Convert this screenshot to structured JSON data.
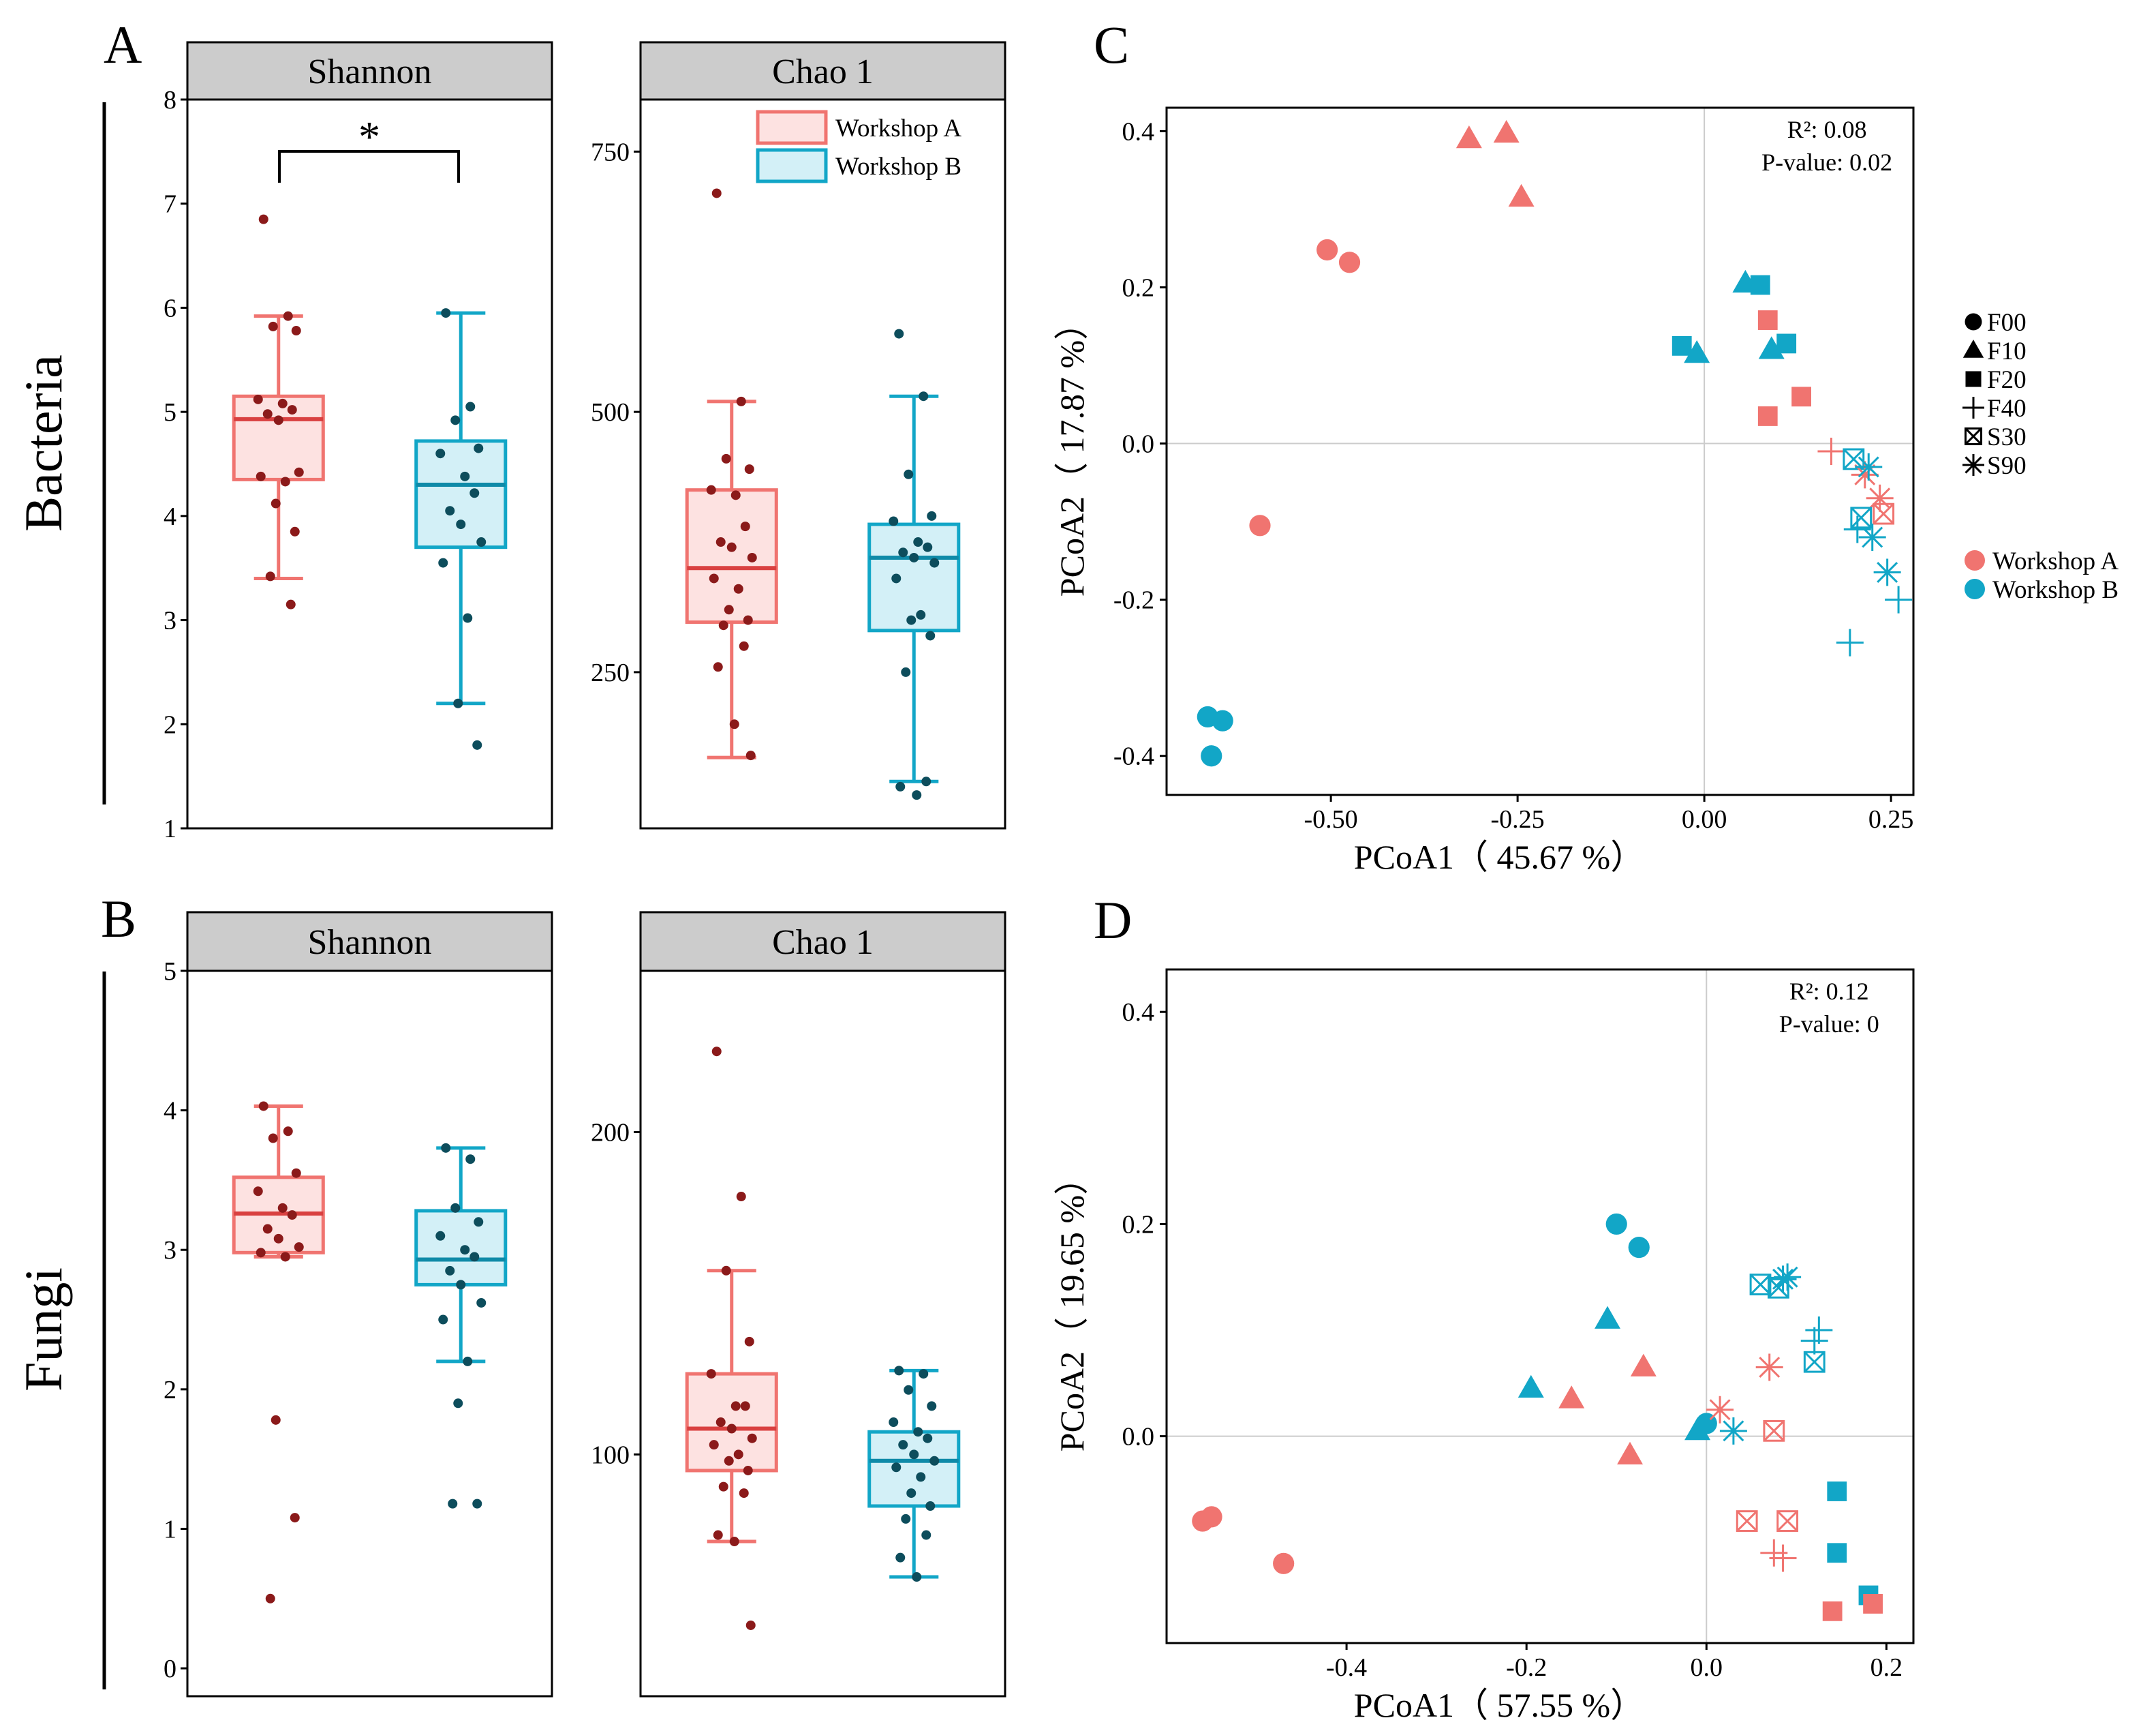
{
  "colors": {
    "workshopA": "#f07470",
    "workshopB": "#12a6c7",
    "workshopA_fill": "#fde2e1",
    "workshopB_fill": "#d3f0f7",
    "workshopA_point": "#8b1a1a",
    "workshopB_point": "#0d4d5c",
    "strip_fill": "#cccccc",
    "zero_line": "#cccccc"
  },
  "rows": [
    {
      "label": "Bacteria"
    },
    {
      "label": "Fungi"
    }
  ],
  "significance": {
    "label": "*"
  },
  "chart_data": [
    {
      "id": "A-shannon",
      "panel": "A",
      "type": "box",
      "title": "Shannon",
      "ylim": [
        1,
        8
      ],
      "yticks": [
        1,
        2,
        3,
        4,
        5,
        6,
        7,
        8
      ],
      "groups": [
        {
          "name": "Workshop A",
          "box": {
            "min": 3.4,
            "q1": 4.35,
            "median": 4.93,
            "q3": 5.15,
            "max": 5.92
          },
          "points": [
            6.85,
            5.92,
            5.82,
            5.78,
            5.12,
            5.08,
            5.02,
            4.98,
            4.92,
            4.42,
            4.38,
            4.33,
            4.12,
            3.85,
            3.42,
            3.15
          ]
        },
        {
          "name": "Workshop B",
          "box": {
            "min": 2.2,
            "q1": 3.7,
            "median": 4.3,
            "q3": 4.72,
            "max": 5.95
          },
          "points": [
            5.95,
            5.05,
            4.92,
            4.65,
            4.6,
            4.38,
            4.22,
            4.05,
            3.92,
            3.75,
            3.55,
            3.02,
            2.2,
            1.8
          ]
        }
      ]
    },
    {
      "id": "A-chao",
      "panel": "A",
      "type": "box",
      "title": "Chao 1",
      "ylim": [
        100,
        800
      ],
      "yticks": [
        250,
        500,
        750
      ],
      "groups": [
        {
          "name": "Workshop A",
          "box": {
            "min": 168,
            "q1": 298,
            "median": 350,
            "q3": 425,
            "max": 510
          },
          "points": [
            710,
            510,
            455,
            445,
            425,
            420,
            390,
            375,
            370,
            360,
            340,
            330,
            310,
            300,
            295,
            275,
            255,
            200,
            170
          ]
        },
        {
          "name": "Workshop B",
          "box": {
            "min": 145,
            "q1": 290,
            "median": 360,
            "q3": 392,
            "max": 515
          },
          "points": [
            575,
            515,
            440,
            400,
            395,
            375,
            370,
            365,
            360,
            355,
            340,
            305,
            300,
            285,
            250,
            145,
            140,
            132
          ]
        }
      ]
    },
    {
      "id": "B-shannon",
      "panel": "B",
      "type": "box",
      "title": "Shannon",
      "ylim": [
        -0.2,
        5
      ],
      "yticks": [
        0,
        1,
        2,
        3,
        4,
        5
      ],
      "groups": [
        {
          "name": "Workshop A",
          "box": {
            "min": 2.95,
            "q1": 2.98,
            "median": 3.26,
            "q3": 3.52,
            "max": 4.03
          },
          "points": [
            4.03,
            3.85,
            3.8,
            3.55,
            3.42,
            3.3,
            3.25,
            3.15,
            3.08,
            3.02,
            2.98,
            2.95,
            1.78,
            1.08,
            0.5
          ]
        },
        {
          "name": "Workshop B",
          "box": {
            "min": 2.2,
            "q1": 2.75,
            "median": 2.93,
            "q3": 3.28,
            "max": 3.73
          },
          "points": [
            3.73,
            3.65,
            3.3,
            3.2,
            3.1,
            3.0,
            2.95,
            2.85,
            2.75,
            2.62,
            2.5,
            2.2,
            1.9,
            1.18,
            1.18
          ]
        }
      ]
    },
    {
      "id": "B-chao",
      "panel": "B",
      "type": "box",
      "title": "Chao 1",
      "ylim": [
        25,
        250
      ],
      "yticks": [
        100,
        200
      ],
      "groups": [
        {
          "name": "Workshop A",
          "box": {
            "min": 73,
            "q1": 95,
            "median": 108,
            "q3": 125,
            "max": 157
          },
          "points": [
            225,
            180,
            157,
            135,
            125,
            115,
            115,
            110,
            108,
            105,
            103,
            100,
            98,
            95,
            90,
            88,
            75,
            73,
            47
          ]
        },
        {
          "name": "Workshop B",
          "box": {
            "min": 62,
            "q1": 84,
            "median": 98,
            "q3": 107,
            "max": 126
          },
          "points": [
            126,
            125,
            120,
            115,
            110,
            107,
            105,
            103,
            100,
            98,
            96,
            93,
            88,
            84,
            80,
            75,
            68,
            62
          ]
        }
      ]
    },
    {
      "id": "C-pcoa",
      "panel": "C",
      "type": "scatter",
      "xlabel": "PCoA1（ 45.67 %）",
      "ylabel": "PCoA2（ 17.87 %）",
      "xlim": [
        -0.72,
        0.28
      ],
      "ylim": [
        -0.45,
        0.43
      ],
      "xticks": [
        -0.5,
        -0.25,
        0.0,
        0.25
      ],
      "xtick_labels": [
        "-0.50",
        "-0.25",
        "0.00",
        "0.25"
      ],
      "yticks": [
        -0.4,
        -0.2,
        0.0,
        0.2,
        0.4
      ],
      "ytick_labels": [
        "-0.4",
        "-0.2",
        "0.0",
        "0.2",
        "0.4"
      ],
      "stats": {
        "r2": "R²:  0.08",
        "p": "P-value:  0.02"
      },
      "points": [
        {
          "x": -0.315,
          "y": 0.39,
          "s": "F10",
          "g": "A"
        },
        {
          "x": -0.265,
          "y": 0.397,
          "s": "F10",
          "g": "A"
        },
        {
          "x": -0.245,
          "y": 0.315,
          "s": "F10",
          "g": "A"
        },
        {
          "x": -0.505,
          "y": 0.248,
          "s": "F00",
          "g": "A"
        },
        {
          "x": -0.475,
          "y": 0.232,
          "s": "F00",
          "g": "A"
        },
        {
          "x": -0.595,
          "y": -0.105,
          "s": "F00",
          "g": "A"
        },
        {
          "x": 0.055,
          "y": 0.205,
          "s": "F10",
          "g": "B"
        },
        {
          "x": 0.075,
          "y": 0.203,
          "s": "F20",
          "g": "B"
        },
        {
          "x": 0.085,
          "y": 0.158,
          "s": "F20",
          "g": "A"
        },
        {
          "x": -0.03,
          "y": 0.125,
          "s": "F20",
          "g": "B"
        },
        {
          "x": -0.01,
          "y": 0.115,
          "s": "F10",
          "g": "B"
        },
        {
          "x": 0.09,
          "y": 0.12,
          "s": "F10",
          "g": "B"
        },
        {
          "x": 0.11,
          "y": 0.128,
          "s": "F20",
          "g": "B"
        },
        {
          "x": 0.13,
          "y": 0.06,
          "s": "F20",
          "g": "A"
        },
        {
          "x": 0.085,
          "y": 0.035,
          "s": "F20",
          "g": "A"
        },
        {
          "x": 0.17,
          "y": -0.01,
          "s": "F40",
          "g": "A"
        },
        {
          "x": 0.2,
          "y": -0.02,
          "s": "S30",
          "g": "B"
        },
        {
          "x": 0.215,
          "y": -0.04,
          "s": "S90",
          "g": "A"
        },
        {
          "x": 0.22,
          "y": -0.03,
          "s": "S90",
          "g": "B"
        },
        {
          "x": 0.235,
          "y": -0.07,
          "s": "S90",
          "g": "A"
        },
        {
          "x": 0.24,
          "y": -0.09,
          "s": "S30",
          "g": "A"
        },
        {
          "x": 0.21,
          "y": -0.095,
          "s": "S30",
          "g": "B"
        },
        {
          "x": 0.205,
          "y": -0.11,
          "s": "F40",
          "g": "B"
        },
        {
          "x": 0.225,
          "y": -0.12,
          "s": "S90",
          "g": "B"
        },
        {
          "x": 0.245,
          "y": -0.165,
          "s": "S90",
          "g": "B"
        },
        {
          "x": 0.26,
          "y": -0.2,
          "s": "F40",
          "g": "B"
        },
        {
          "x": 0.195,
          "y": -0.255,
          "s": "F40",
          "g": "B"
        },
        {
          "x": -0.665,
          "y": -0.35,
          "s": "F00",
          "g": "B"
        },
        {
          "x": -0.645,
          "y": -0.355,
          "s": "F00",
          "g": "B"
        },
        {
          "x": -0.66,
          "y": -0.4,
          "s": "F00",
          "g": "B"
        }
      ]
    },
    {
      "id": "D-pcoa",
      "panel": "D",
      "type": "scatter",
      "xlabel": "PCoA1（ 57.55 %）",
      "ylabel": "PCoA2（ 19.65 %）",
      "xlim": [
        -0.6,
        0.23
      ],
      "ylim": [
        -0.195,
        0.44
      ],
      "xticks": [
        -0.4,
        -0.2,
        0.0,
        0.2
      ],
      "xtick_labels": [
        "-0.4",
        "-0.2",
        "0.0",
        "0.2"
      ],
      "yticks": [
        0.0,
        0.2,
        0.4
      ],
      "ytick_labels": [
        "0.0",
        "0.2",
        "0.4"
      ],
      "stats": {
        "r2": "R²:  0.12",
        "p": "P-value:  0"
      },
      "points": [
        {
          "x": -0.1,
          "y": 0.2,
          "s": "F00",
          "g": "B"
        },
        {
          "x": -0.075,
          "y": 0.178,
          "s": "F00",
          "g": "B"
        },
        {
          "x": -0.11,
          "y": 0.11,
          "s": "F10",
          "g": "B"
        },
        {
          "x": -0.195,
          "y": 0.045,
          "s": "F10",
          "g": "B"
        },
        {
          "x": -0.15,
          "y": 0.035,
          "s": "F10",
          "g": "A"
        },
        {
          "x": -0.07,
          "y": 0.065,
          "s": "F10",
          "g": "A"
        },
        {
          "x": -0.085,
          "y": -0.018,
          "s": "F10",
          "g": "A"
        },
        {
          "x": -0.01,
          "y": 0.005,
          "s": "F10",
          "g": "B"
        },
        {
          "x": 0.0,
          "y": 0.012,
          "s": "F00",
          "g": "B"
        },
        {
          "x": 0.015,
          "y": 0.025,
          "s": "S90",
          "g": "A"
        },
        {
          "x": 0.03,
          "y": 0.005,
          "s": "S90",
          "g": "B"
        },
        {
          "x": 0.075,
          "y": 0.005,
          "s": "S30",
          "g": "A"
        },
        {
          "x": 0.07,
          "y": 0.065,
          "s": "S90",
          "g": "A"
        },
        {
          "x": 0.06,
          "y": 0.143,
          "s": "S30",
          "g": "B"
        },
        {
          "x": 0.08,
          "y": 0.14,
          "s": "S30",
          "g": "B"
        },
        {
          "x": 0.085,
          "y": 0.148,
          "s": "S90",
          "g": "B"
        },
        {
          "x": 0.09,
          "y": 0.15,
          "s": "S90",
          "g": "B"
        },
        {
          "x": 0.125,
          "y": 0.1,
          "s": "F40",
          "g": "B"
        },
        {
          "x": 0.12,
          "y": 0.09,
          "s": "F40",
          "g": "B"
        },
        {
          "x": 0.12,
          "y": 0.07,
          "s": "S30",
          "g": "B"
        },
        {
          "x": 0.145,
          "y": -0.052,
          "s": "F20",
          "g": "B"
        },
        {
          "x": 0.145,
          "y": -0.11,
          "s": "F20",
          "g": "B"
        },
        {
          "x": 0.18,
          "y": -0.15,
          "s": "F20",
          "g": "B"
        },
        {
          "x": 0.185,
          "y": -0.158,
          "s": "F20",
          "g": "A"
        },
        {
          "x": 0.14,
          "y": -0.165,
          "s": "F20",
          "g": "A"
        },
        {
          "x": 0.045,
          "y": -0.08,
          "s": "S30",
          "g": "A"
        },
        {
          "x": 0.09,
          "y": -0.08,
          "s": "S30",
          "g": "A"
        },
        {
          "x": 0.075,
          "y": -0.11,
          "s": "F40",
          "g": "A"
        },
        {
          "x": 0.085,
          "y": -0.115,
          "s": "F40",
          "g": "A"
        },
        {
          "x": -0.56,
          "y": -0.08,
          "s": "F00",
          "g": "A"
        },
        {
          "x": -0.55,
          "y": -0.076,
          "s": "F00",
          "g": "A"
        },
        {
          "x": -0.47,
          "y": -0.12,
          "s": "F00",
          "g": "A"
        }
      ]
    }
  ],
  "legend_box": {
    "items": [
      {
        "label": "Workshop A",
        "group": "A"
      },
      {
        "label": "Workshop B",
        "group": "B"
      }
    ]
  },
  "legend_shapes": {
    "items": [
      {
        "label": "F00",
        "shape": "F00"
      },
      {
        "label": "F10",
        "shape": "F10"
      },
      {
        "label": "F20",
        "shape": "F20"
      },
      {
        "label": "F40",
        "shape": "F40"
      },
      {
        "label": "S30",
        "shape": "S30"
      },
      {
        "label": "S90",
        "shape": "S90"
      }
    ]
  },
  "legend_groups": {
    "items": [
      {
        "label": "Workshop A",
        "group": "A"
      },
      {
        "label": "Workshop B",
        "group": "B"
      }
    ]
  }
}
